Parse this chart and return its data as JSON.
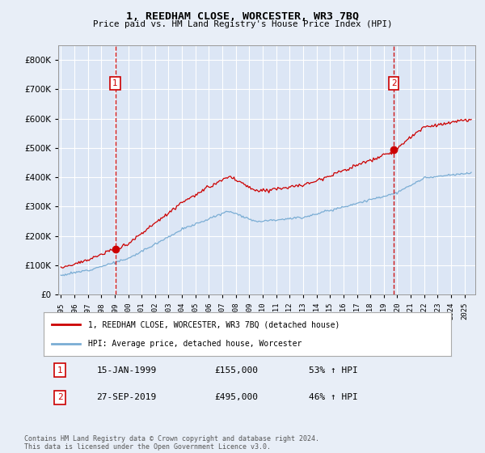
{
  "title": "1, REEDHAM CLOSE, WORCESTER, WR3 7BQ",
  "subtitle": "Price paid vs. HM Land Registry's House Price Index (HPI)",
  "background_color": "#e8eef7",
  "plot_bg_color": "#dce6f5",
  "red_color": "#cc0000",
  "blue_color": "#7aadd4",
  "grid_color": "#ffffff",
  "sale1_date_year": 1999.04,
  "sale1_price": 155000,
  "sale2_date_year": 2019.74,
  "sale2_price": 495000,
  "legend_label_red": "1, REEDHAM CLOSE, WORCESTER, WR3 7BQ (detached house)",
  "legend_label_blue": "HPI: Average price, detached house, Worcester",
  "annotation1_label": "1",
  "annotation1_date": "15-JAN-1999",
  "annotation1_price": "£155,000",
  "annotation1_hpi": "53% ↑ HPI",
  "annotation2_label": "2",
  "annotation2_date": "27-SEP-2019",
  "annotation2_price": "£495,000",
  "annotation2_hpi": "46% ↑ HPI",
  "footer": "Contains HM Land Registry data © Crown copyright and database right 2024.\nThis data is licensed under the Open Government Licence v3.0.",
  "ylim": [
    0,
    850000
  ],
  "yticks": [
    0,
    100000,
    200000,
    300000,
    400000,
    500000,
    600000,
    700000,
    800000
  ],
  "xmin": 1994.8,
  "xmax": 2025.8
}
